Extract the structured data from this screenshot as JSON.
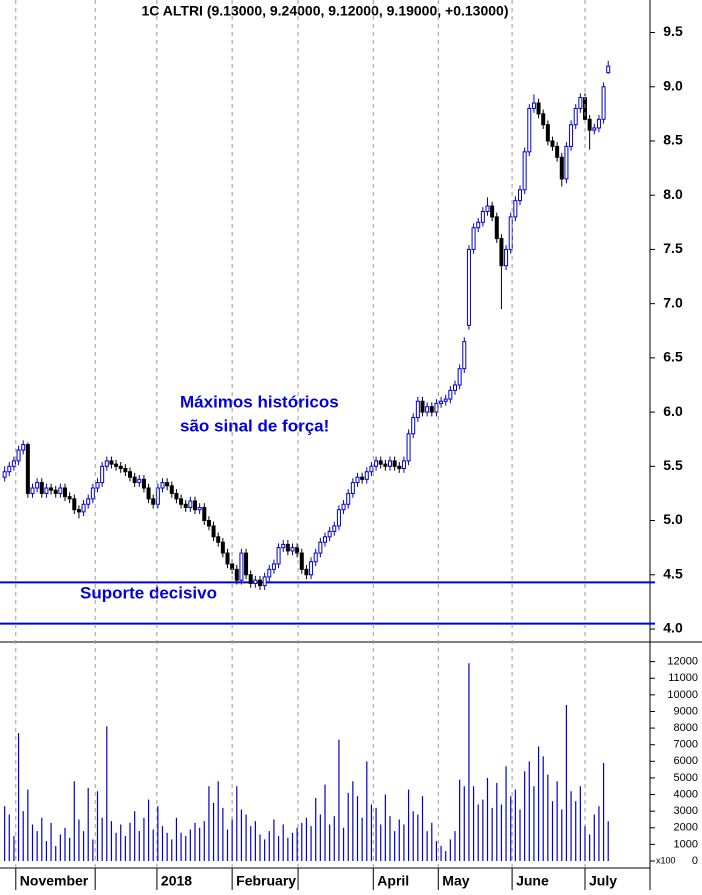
{
  "chart_data": [
    {
      "type": "candlestick",
      "title": "1C ALTRI (9.13000, 9.24000, 9.12000, 9.19000, +0.13000)",
      "annotations": [
        "Máximos históricos",
        "são sinal de força!",
        "Suporte decisivo"
      ],
      "hlines": [
        4.43,
        4.05
      ],
      "hline_color": "#0000dd",
      "up_color": "#0000cc",
      "down_color": "#000000",
      "xlim": [
        -1,
        139
      ],
      "ylim": [
        3.88,
        9.8
      ],
      "yticks": [
        {
          "value": 4,
          "label": "4.0"
        },
        4.5,
        {
          "value": 5,
          "label": "5.0"
        },
        5.5,
        {
          "value": 6,
          "label": "6.0"
        },
        6.5,
        {
          "value": 7,
          "label": "7.0"
        },
        7.5,
        {
          "value": 8,
          "label": "8.0"
        },
        8.5,
        {
          "value": 9,
          "label": "9.0"
        },
        9.5
      ],
      "ohlc": [
        [
          5.4,
          5.5,
          5.36,
          5.45
        ],
        [
          5.45,
          5.54,
          5.41,
          5.5
        ],
        [
          5.5,
          5.59,
          5.46,
          5.55
        ],
        [
          5.55,
          5.69,
          5.51,
          5.65
        ],
        [
          5.65,
          5.74,
          5.61,
          5.7
        ],
        [
          5.7,
          5.72,
          5.21,
          5.25
        ],
        [
          5.25,
          5.34,
          5.21,
          5.3
        ],
        [
          5.3,
          5.39,
          5.26,
          5.35
        ],
        [
          5.35,
          5.39,
          5.21,
          5.25
        ],
        [
          5.25,
          5.34,
          5.21,
          5.3
        ],
        [
          5.3,
          5.34,
          5.24,
          5.28
        ],
        [
          5.28,
          5.32,
          5.21,
          5.25
        ],
        [
          5.25,
          5.34,
          5.21,
          5.3
        ],
        [
          5.3,
          5.34,
          5.18,
          5.22
        ],
        [
          5.22,
          5.26,
          5.16,
          5.2
        ],
        [
          5.2,
          5.24,
          5.06,
          5.1
        ],
        [
          5.1,
          5.14,
          5.02,
          5.08
        ],
        [
          5.08,
          5.19,
          5.04,
          5.15
        ],
        [
          5.15,
          5.24,
          5.11,
          5.2
        ],
        [
          5.2,
          5.34,
          5.16,
          5.3
        ],
        [
          5.3,
          5.39,
          5.26,
          5.35
        ],
        [
          5.35,
          5.54,
          5.31,
          5.5
        ],
        [
          5.5,
          5.59,
          5.46,
          5.55
        ],
        [
          5.55,
          5.59,
          5.48,
          5.52
        ],
        [
          5.52,
          5.56,
          5.46,
          5.5
        ],
        [
          5.5,
          5.54,
          5.44,
          5.48
        ],
        [
          5.48,
          5.52,
          5.41,
          5.45
        ],
        [
          5.45,
          5.49,
          5.36,
          5.4
        ],
        [
          5.4,
          5.44,
          5.31,
          5.35
        ],
        [
          5.35,
          5.42,
          5.31,
          5.38
        ],
        [
          5.38,
          5.42,
          5.26,
          5.3
        ],
        [
          5.3,
          5.34,
          5.16,
          5.2
        ],
        [
          5.2,
          5.24,
          5.11,
          5.15
        ],
        [
          5.15,
          5.34,
          5.11,
          5.3
        ],
        [
          5.3,
          5.39,
          5.26,
          5.35
        ],
        [
          5.35,
          5.39,
          5.28,
          5.32
        ],
        [
          5.32,
          5.36,
          5.21,
          5.25
        ],
        [
          5.25,
          5.29,
          5.16,
          5.2
        ],
        [
          5.2,
          5.24,
          5.11,
          5.15
        ],
        [
          5.15,
          5.19,
          5.08,
          5.12
        ],
        [
          5.12,
          5.22,
          5.08,
          5.18
        ],
        [
          5.18,
          5.22,
          5.06,
          5.1
        ],
        [
          5.1,
          5.16,
          5.06,
          5.12
        ],
        [
          5.12,
          5.16,
          4.96,
          5.0
        ],
        [
          5.0,
          5.04,
          4.91,
          4.95
        ],
        [
          4.95,
          4.99,
          4.81,
          4.85
        ],
        [
          4.85,
          4.89,
          4.76,
          4.8
        ],
        [
          4.8,
          4.84,
          4.66,
          4.7
        ],
        [
          4.7,
          4.74,
          4.56,
          4.6
        ],
        [
          4.6,
          4.64,
          4.51,
          4.55
        ],
        [
          4.55,
          4.59,
          4.41,
          4.45
        ],
        [
          4.45,
          4.74,
          4.41,
          4.7
        ],
        [
          4.7,
          4.74,
          4.46,
          4.5
        ],
        [
          4.5,
          4.54,
          4.38,
          4.42
        ],
        [
          4.42,
          4.49,
          4.38,
          4.45
        ],
        [
          4.45,
          4.49,
          4.36,
          4.4
        ],
        [
          4.4,
          4.52,
          4.36,
          4.48
        ],
        [
          4.48,
          4.59,
          4.44,
          4.55
        ],
        [
          4.55,
          4.64,
          4.51,
          4.6
        ],
        [
          4.6,
          4.79,
          4.56,
          4.75
        ],
        [
          4.75,
          4.82,
          4.71,
          4.78
        ],
        [
          4.78,
          4.82,
          4.68,
          4.72
        ],
        [
          4.72,
          4.79,
          4.68,
          4.75
        ],
        [
          4.75,
          4.79,
          4.66,
          4.7
        ],
        [
          4.7,
          4.74,
          4.51,
          4.55
        ],
        [
          4.55,
          4.59,
          4.46,
          4.5
        ],
        [
          4.5,
          4.66,
          4.46,
          4.62
        ],
        [
          4.62,
          4.74,
          4.58,
          4.7
        ],
        [
          4.7,
          4.84,
          4.66,
          4.8
        ],
        [
          4.8,
          4.89,
          4.76,
          4.85
        ],
        [
          4.85,
          4.94,
          4.81,
          4.9
        ],
        [
          4.9,
          4.99,
          4.86,
          4.95
        ],
        [
          4.95,
          5.14,
          4.91,
          5.1
        ],
        [
          5.1,
          5.19,
          5.06,
          5.15
        ],
        [
          5.15,
          5.29,
          5.11,
          5.25
        ],
        [
          5.25,
          5.39,
          5.21,
          5.35
        ],
        [
          5.35,
          5.44,
          5.31,
          5.4
        ],
        [
          5.4,
          5.44,
          5.34,
          5.38
        ],
        [
          5.38,
          5.49,
          5.34,
          5.45
        ],
        [
          5.45,
          5.54,
          5.41,
          5.5
        ],
        [
          5.5,
          5.59,
          5.46,
          5.55
        ],
        [
          5.55,
          5.59,
          5.48,
          5.52
        ],
        [
          5.52,
          5.56,
          5.46,
          5.5
        ],
        [
          5.5,
          5.59,
          5.46,
          5.55
        ],
        [
          5.55,
          5.59,
          5.46,
          5.5
        ],
        [
          5.5,
          5.54,
          5.44,
          5.48
        ],
        [
          5.48,
          5.59,
          5.44,
          5.55
        ],
        [
          5.55,
          5.84,
          5.51,
          5.8
        ],
        [
          5.8,
          5.99,
          5.76,
          5.95
        ],
        [
          5.95,
          6.14,
          5.91,
          6.1
        ],
        [
          6.1,
          6.14,
          5.96,
          6.0
        ],
        [
          6.0,
          6.09,
          5.96,
          6.05
        ],
        [
          6.05,
          6.09,
          5.96,
          6.0
        ],
        [
          6.0,
          6.12,
          5.96,
          6.08
        ],
        [
          6.08,
          6.14,
          6.04,
          6.1
        ],
        [
          6.1,
          6.16,
          6.06,
          6.12
        ],
        [
          6.12,
          6.24,
          6.08,
          6.2
        ],
        [
          6.2,
          6.29,
          6.16,
          6.25
        ],
        [
          6.25,
          6.44,
          6.21,
          6.4
        ],
        [
          6.4,
          6.69,
          6.36,
          6.65
        ],
        [
          6.8,
          7.54,
          6.76,
          7.5
        ],
        [
          7.5,
          7.74,
          7.46,
          7.7
        ],
        [
          7.7,
          7.79,
          7.66,
          7.75
        ],
        [
          7.75,
          7.89,
          7.71,
          7.85
        ],
        [
          7.85,
          7.98,
          7.81,
          7.9
        ],
        [
          7.9,
          7.94,
          7.76,
          7.8
        ],
        [
          7.8,
          7.84,
          7.56,
          7.6
        ],
        [
          7.6,
          7.64,
          6.95,
          7.35
        ],
        [
          7.35,
          7.54,
          7.31,
          7.5
        ],
        [
          7.5,
          7.84,
          7.46,
          7.8
        ],
        [
          7.8,
          7.99,
          7.76,
          7.95
        ],
        [
          7.95,
          8.09,
          7.91,
          8.05
        ],
        [
          8.05,
          8.44,
          8.01,
          8.4
        ],
        [
          8.4,
          8.84,
          8.36,
          8.8
        ],
        [
          8.8,
          8.93,
          8.76,
          8.85
        ],
        [
          8.85,
          8.89,
          8.71,
          8.75
        ],
        [
          8.75,
          8.79,
          8.61,
          8.65
        ],
        [
          8.65,
          8.69,
          8.46,
          8.5
        ],
        [
          8.5,
          8.54,
          8.41,
          8.45
        ],
        [
          8.45,
          8.49,
          8.31,
          8.35
        ],
        [
          8.35,
          8.39,
          8.08,
          8.15
        ],
        [
          8.15,
          8.49,
          8.11,
          8.45
        ],
        [
          8.45,
          8.69,
          8.41,
          8.65
        ],
        [
          8.65,
          8.84,
          8.61,
          8.8
        ],
        [
          8.8,
          8.94,
          8.76,
          8.9
        ],
        [
          8.9,
          8.94,
          8.66,
          8.7
        ],
        [
          8.7,
          8.74,
          8.42,
          8.6
        ],
        [
          8.6,
          8.66,
          8.56,
          8.62
        ],
        [
          8.62,
          8.74,
          8.58,
          8.7
        ],
        [
          8.7,
          9.04,
          8.66,
          9.0
        ],
        [
          9.13,
          9.24,
          9.12,
          9.19
        ]
      ]
    },
    {
      "type": "bar",
      "ylabel": "x100",
      "color": "#0000cc",
      "grid": "x",
      "xlim": [
        -1,
        139
      ],
      "ylim": [
        -420,
        13000
      ],
      "yticks": [
        0,
        1000,
        2000,
        3000,
        4000,
        5000,
        6000,
        7000,
        8000,
        9000,
        10000,
        11000,
        12000
      ],
      "xticks": [
        {
          "value": 2.4,
          "label": "November"
        },
        {
          "value": 19.5,
          "label": null
        },
        {
          "value": 32.8,
          "label": "2018"
        },
        {
          "value": 49,
          "label": "February"
        },
        {
          "value": 63.2,
          "label": null
        },
        {
          "value": 79.4,
          "label": "April"
        },
        {
          "value": 93.4,
          "label": "May"
        },
        {
          "value": 109.3,
          "label": "June"
        },
        {
          "value": 125,
          "label": "July"
        }
      ],
      "values": [
        3300,
        2800,
        1500,
        7700,
        3000,
        4300,
        2200,
        1800,
        2600,
        1200,
        2300,
        900,
        1600,
        2000,
        1400,
        4800,
        2500,
        1800,
        4400,
        1300,
        4200,
        2600,
        8100,
        2400,
        1700,
        2200,
        1500,
        2300,
        3000,
        1800,
        2600,
        3700,
        1900,
        3300,
        2100,
        1700,
        1300,
        2600,
        1700,
        1500,
        1900,
        2300,
        2000,
        2400,
        4500,
        3500,
        4800,
        3200,
        1900,
        2500,
        4500,
        3100,
        2800,
        2100,
        2400,
        1600,
        1300,
        1800,
        2500,
        1500,
        2200,
        1400,
        1700,
        2000,
        2300,
        2600,
        2100,
        3800,
        2800,
        4600,
        2200,
        2700,
        7300,
        2000,
        4100,
        4800,
        3900,
        2600,
        6000,
        3400,
        3200,
        2200,
        4000,
        2700,
        1800,
        2500,
        2200,
        4300,
        3000,
        2800,
        3900,
        1800,
        2300,
        1200,
        900,
        600,
        1300,
        1800,
        4900,
        4500,
        11900,
        4500,
        3400,
        3700,
        5000,
        3200,
        4700,
        3400,
        5700,
        3900,
        4300,
        3100,
        5400,
        6000,
        4500,
        6900,
        6300,
        5200,
        3600,
        4800,
        3100,
        9400,
        4200,
        3600,
        4500,
        2100,
        1600,
        2800,
        3300,
        5900,
        2400
      ]
    }
  ]
}
